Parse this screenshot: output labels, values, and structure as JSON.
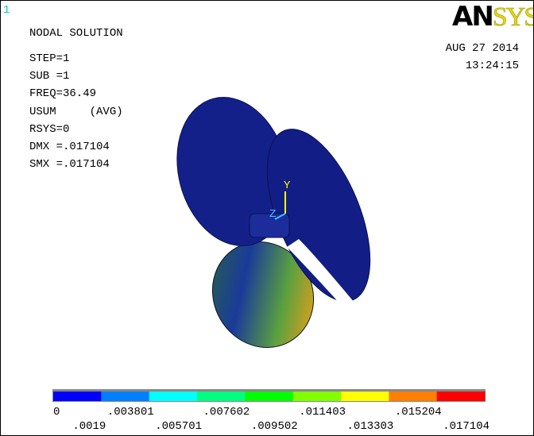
{
  "window_number": "1",
  "logo": {
    "part1": "AN",
    "part2": "SYS"
  },
  "header": {
    "title": "NODAL SOLUTION",
    "lines": [
      "STEP=1",
      "SUB =1",
      "FREQ=36.49",
      "USUM     (AVG)",
      "RSYS=0",
      "DMX =.017104",
      "SMX =.017104"
    ]
  },
  "timestamp": {
    "date": "AUG 27 2014",
    "time": "13:24:15"
  },
  "triad": {
    "y": "Y",
    "z": "Z"
  },
  "legend": {
    "colors": [
      "#0000ff",
      "#0080ff",
      "#00ffff",
      "#00ff80",
      "#00ff00",
      "#80ff00",
      "#ffff00",
      "#ff8000",
      "#ff0000"
    ],
    "labels": [
      "0",
      ".0019",
      ".003801",
      ".005701",
      ".007602",
      ".009502",
      ".011403",
      ".013303",
      ".015204",
      ".017104"
    ]
  }
}
